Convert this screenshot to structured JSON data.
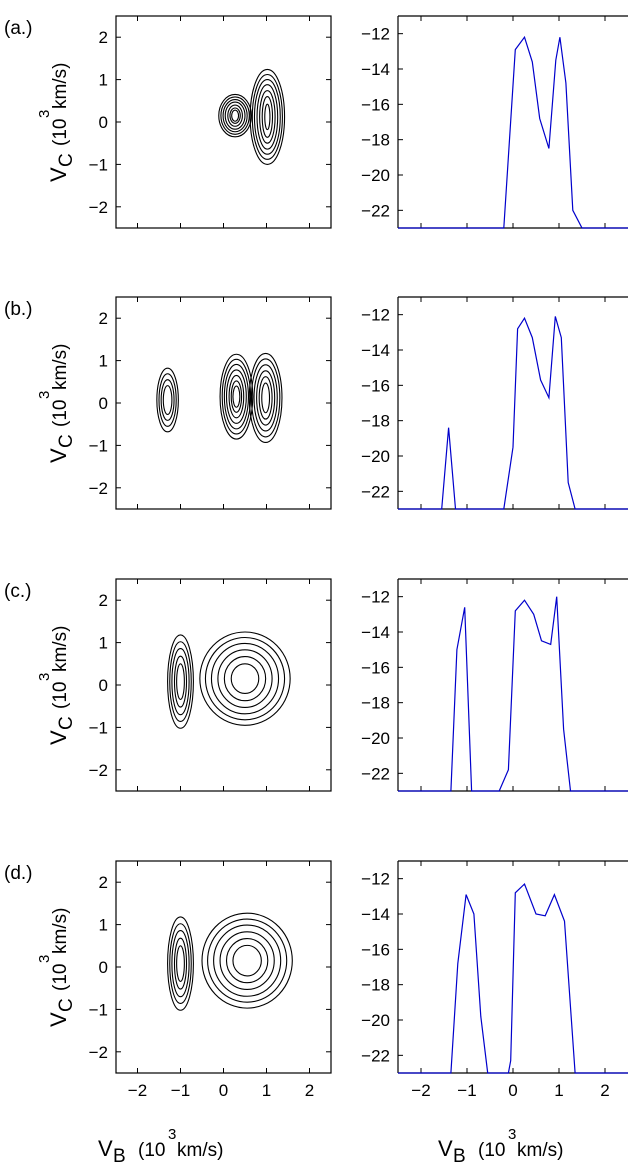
{
  "colors": {
    "contour": "#000000",
    "profile": "#0000cc",
    "axes": "#000000",
    "background": "#ffffff"
  },
  "axis_labels": {
    "y_symbol": "V",
    "y_sub": "C",
    "y_unit": "(10",
    "y_exp": "3",
    "y_unit_end": " km/s)",
    "x_symbol": "V",
    "x_sub": "B",
    "x_unit": "(10",
    "x_exp": "3",
    "x_unit_end": " km/s)"
  },
  "chart_data": [
    {
      "panel": "(a.)",
      "contour": {
        "type": "contour",
        "xlim": [
          -2.5,
          2.5
        ],
        "ylim": [
          -2.5,
          2.5
        ],
        "yticks": [
          -2,
          -1,
          0,
          1,
          2
        ],
        "xticks": [
          -2,
          -1,
          0,
          1,
          2
        ],
        "show_xtick_labels": false,
        "blobs": [
          {
            "cx": 0.27,
            "cy": 0.15,
            "levels": [
              [
                0.38,
                0.5
              ],
              [
                0.33,
                0.44
              ],
              [
                0.28,
                0.38
              ],
              [
                0.23,
                0.32
              ],
              [
                0.17,
                0.25
              ],
              [
                0.12,
                0.18
              ],
              [
                0.08,
                0.13
              ]
            ]
          },
          {
            "cx": 1.02,
            "cy": 0.12,
            "levels": [
              [
                0.4,
                1.12
              ],
              [
                0.35,
                1.0
              ],
              [
                0.3,
                0.88
              ],
              [
                0.24,
                0.76
              ],
              [
                0.18,
                0.62
              ],
              [
                0.12,
                0.48
              ],
              [
                0.06,
                0.3
              ]
            ]
          }
        ]
      },
      "profile": {
        "type": "line",
        "xlim": [
          -2.5,
          2.5
        ],
        "ylim": [
          -23,
          -11
        ],
        "yticks": [
          -22,
          -20,
          -18,
          -16,
          -14,
          -12
        ],
        "xticks": [
          -2,
          -1,
          0,
          1,
          2
        ],
        "show_xtick_labels": false,
        "x": [
          -2.5,
          -0.2,
          0.05,
          0.25,
          0.42,
          0.58,
          0.78,
          0.93,
          1.02,
          1.15,
          1.3,
          1.5,
          2.5
        ],
        "y": [
          -23,
          -23,
          -12.9,
          -12.2,
          -13.6,
          -16.8,
          -18.5,
          -13.5,
          -12.2,
          -14.8,
          -22.0,
          -23,
          -23
        ]
      }
    },
    {
      "panel": "(b.)",
      "contour": {
        "type": "contour",
        "xlim": [
          -2.5,
          2.5
        ],
        "ylim": [
          -2.5,
          2.5
        ],
        "yticks": [
          -2,
          -1,
          0,
          1,
          2
        ],
        "xticks": [
          -2,
          -1,
          0,
          1,
          2
        ],
        "show_xtick_labels": false,
        "blobs": [
          {
            "cx": 0.3,
            "cy": 0.15,
            "levels": [
              [
                0.38,
                1.0
              ],
              [
                0.33,
                0.88
              ],
              [
                0.28,
                0.76
              ],
              [
                0.23,
                0.63
              ],
              [
                0.17,
                0.5
              ],
              [
                0.12,
                0.37
              ],
              [
                0.08,
                0.25
              ]
            ]
          },
          {
            "cx": 0.98,
            "cy": 0.12,
            "levels": [
              [
                0.38,
                1.05
              ],
              [
                0.33,
                0.92
              ],
              [
                0.27,
                0.78
              ],
              [
                0.21,
                0.64
              ],
              [
                0.15,
                0.5
              ],
              [
                0.09,
                0.35
              ]
            ]
          },
          {
            "cx": -1.3,
            "cy": 0.07,
            "levels": [
              [
                0.25,
                0.75
              ],
              [
                0.2,
                0.62
              ],
              [
                0.15,
                0.48
              ],
              [
                0.1,
                0.34
              ]
            ]
          }
        ]
      },
      "profile": {
        "type": "line",
        "xlim": [
          -2.5,
          2.5
        ],
        "ylim": [
          -23,
          -11
        ],
        "yticks": [
          -22,
          -20,
          -18,
          -16,
          -14,
          -12
        ],
        "xticks": [
          -2,
          -1,
          0,
          1,
          2
        ],
        "show_xtick_labels": false,
        "x": [
          -2.5,
          -1.55,
          -1.4,
          -1.25,
          -0.2,
          0.0,
          0.1,
          0.25,
          0.42,
          0.6,
          0.78,
          0.92,
          1.05,
          1.2,
          1.35,
          2.5
        ],
        "y": [
          -23,
          -23,
          -18.4,
          -23,
          -23,
          -19.5,
          -12.8,
          -12.2,
          -13.3,
          -15.7,
          -16.7,
          -12.1,
          -13.3,
          -21.5,
          -23,
          -23
        ]
      }
    },
    {
      "panel": "(c.)",
      "contour": {
        "type": "contour",
        "xlim": [
          -2.5,
          2.5
        ],
        "ylim": [
          -2.5,
          2.5
        ],
        "yticks": [
          -2,
          -1,
          0,
          1,
          2
        ],
        "xticks": [
          -2,
          -1,
          0,
          1,
          2
        ],
        "show_xtick_labels": false,
        "blobs": [
          {
            "cx": 0.5,
            "cy": 0.15,
            "levels": [
              [
                1.05,
                1.1
              ],
              [
                0.92,
                0.97
              ],
              [
                0.78,
                0.83
              ],
              [
                0.63,
                0.68
              ],
              [
                0.48,
                0.52
              ],
              [
                0.32,
                0.35
              ]
            ]
          },
          {
            "cx": -1.0,
            "cy": 0.08,
            "levels": [
              [
                0.3,
                1.1
              ],
              [
                0.25,
                0.94
              ],
              [
                0.2,
                0.78
              ],
              [
                0.14,
                0.6
              ],
              [
                0.09,
                0.42
              ]
            ]
          }
        ]
      },
      "profile": {
        "type": "line",
        "xlim": [
          -2.5,
          2.5
        ],
        "ylim": [
          -23,
          -11
        ],
        "yticks": [
          -22,
          -20,
          -18,
          -16,
          -14,
          -12
        ],
        "xticks": [
          -2,
          -1,
          0,
          1,
          2
        ],
        "show_xtick_labels": false,
        "x": [
          -2.5,
          -1.35,
          -1.22,
          -1.05,
          -0.9,
          -0.3,
          -0.1,
          0.05,
          0.25,
          0.45,
          0.62,
          0.82,
          0.95,
          1.1,
          1.25,
          2.5
        ],
        "y": [
          -23,
          -23,
          -15.0,
          -12.6,
          -23,
          -23,
          -21.8,
          -12.8,
          -12.2,
          -13.0,
          -14.5,
          -14.7,
          -12.0,
          -19.5,
          -23,
          -23
        ]
      }
    },
    {
      "panel": "(d.)",
      "contour": {
        "type": "contour",
        "xlim": [
          -2.5,
          2.5
        ],
        "ylim": [
          -2.5,
          2.5
        ],
        "yticks": [
          -2,
          -1,
          0,
          1,
          2
        ],
        "xticks": [
          -2,
          -1,
          0,
          1,
          2
        ],
        "show_xtick_labels": true,
        "blobs": [
          {
            "cx": 0.55,
            "cy": 0.15,
            "levels": [
              [
                1.05,
                1.12
              ],
              [
                0.92,
                0.98
              ],
              [
                0.78,
                0.84
              ],
              [
                0.63,
                0.68
              ],
              [
                0.48,
                0.52
              ],
              [
                0.33,
                0.36
              ]
            ]
          },
          {
            "cx": -1.0,
            "cy": 0.08,
            "levels": [
              [
                0.3,
                1.1
              ],
              [
                0.25,
                0.94
              ],
              [
                0.2,
                0.78
              ],
              [
                0.14,
                0.6
              ],
              [
                0.09,
                0.42
              ]
            ]
          }
        ]
      },
      "profile": {
        "type": "line",
        "xlim": [
          -2.5,
          2.5
        ],
        "ylim": [
          -23,
          -11
        ],
        "yticks": [
          -22,
          -20,
          -18,
          -16,
          -14,
          -12
        ],
        "xticks": [
          -2,
          -1,
          0,
          1,
          2
        ],
        "show_xtick_labels": true,
        "x": [
          -2.5,
          -1.35,
          -1.2,
          -1.02,
          -0.85,
          -0.7,
          -0.55,
          -0.1,
          -0.05,
          0.05,
          0.25,
          0.5,
          0.7,
          0.9,
          1.12,
          1.35,
          2.5
        ],
        "y": [
          -23,
          -23,
          -16.8,
          -12.9,
          -14.0,
          -19.8,
          -23,
          -23,
          -22.3,
          -12.8,
          -12.3,
          -14.0,
          -14.1,
          -12.9,
          -14.4,
          -23,
          -23
        ]
      }
    }
  ]
}
